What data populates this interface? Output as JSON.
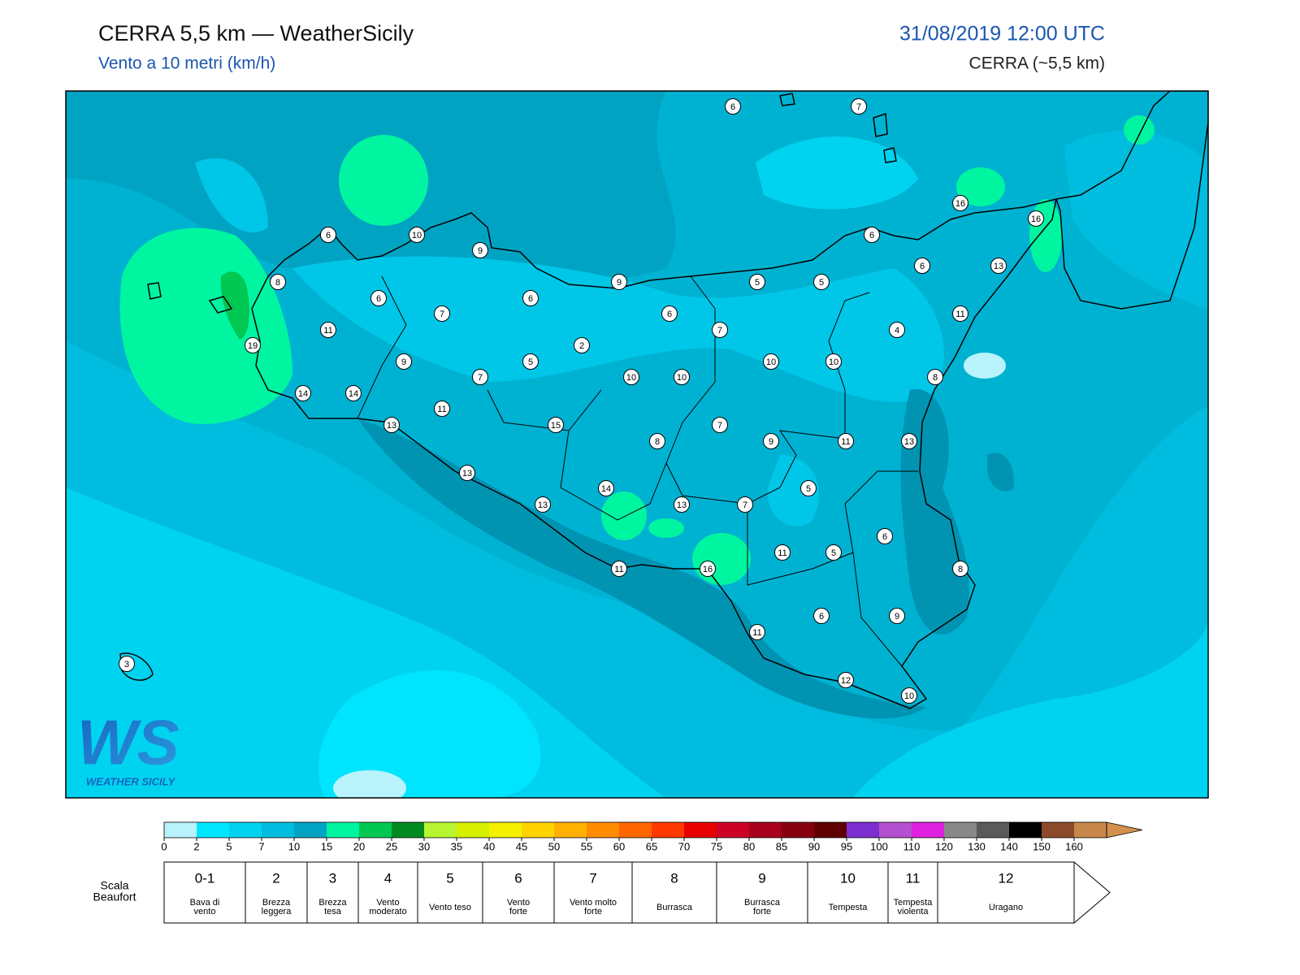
{
  "header": {
    "title": "CERRA 5,5 km — WeatherSicily",
    "subtitle": "Vento a 10 metri (km/h)",
    "datetime": "31/08/2019 12:00 UTC",
    "model": "CERRA (~5,5 km)"
  },
  "stations": [
    6,
    7,
    6,
    10,
    9,
    8,
    9,
    5,
    5,
    6,
    6,
    13,
    16,
    16,
    6,
    7,
    6,
    6,
    7,
    11,
    4,
    11,
    19,
    2,
    5,
    9,
    10,
    10,
    7,
    10,
    10,
    8,
    14,
    14,
    11,
    13,
    15,
    7,
    8,
    9,
    11,
    13,
    13,
    5,
    14,
    13,
    13,
    7,
    6,
    11,
    5,
    11,
    16,
    8,
    6,
    9,
    11,
    12,
    10,
    3
  ],
  "logo": {
    "text": "WS",
    "subtitle": "WEATHER SICILY"
  },
  "colorbar": {
    "levels": [
      0,
      2,
      5,
      7,
      10,
      15,
      20,
      25,
      30,
      35,
      40,
      45,
      50,
      55,
      60,
      65,
      70,
      75,
      80,
      85,
      90,
      95,
      100,
      110,
      120,
      130,
      140,
      150,
      160
    ],
    "colors": [
      "#b9f3fb",
      "#00e5ff",
      "#00d3f0",
      "#00bddf",
      "#00a3c2",
      "#00f5a0",
      "#00c853",
      "#008a20",
      "#b8f531",
      "#d6f000",
      "#f5ef00",
      "#ffd300",
      "#ffb000",
      "#ff8c00",
      "#ff6600",
      "#ff3a00",
      "#e60000",
      "#cc0026",
      "#a8001c",
      "#870010",
      "#5e0000",
      "#7b2fd0",
      "#b44fd0",
      "#e020e0",
      "#888888",
      "#5a5a5a",
      "#000000",
      "#8b4a2b",
      "#c8874a"
    ],
    "extend_color": "#d4914e"
  },
  "beaufort": {
    "title": [
      "Scala",
      "Beaufort"
    ],
    "classes": [
      {
        "force": "0-1",
        "label": [
          "Bava di",
          "vento"
        ]
      },
      {
        "force": 2,
        "label": [
          "Brezza",
          "leggera"
        ]
      },
      {
        "force": 3,
        "label": [
          "Brezza",
          "tesa"
        ]
      },
      {
        "force": 4,
        "label": [
          "Vento",
          "moderato"
        ]
      },
      {
        "force": 5,
        "label": [
          "Vento teso"
        ]
      },
      {
        "force": 6,
        "label": [
          "Vento",
          "forte"
        ]
      },
      {
        "force": 7,
        "label": [
          "Vento molto",
          "forte"
        ]
      },
      {
        "force": 8,
        "label": [
          "Burrasca"
        ]
      },
      {
        "force": 9,
        "label": [
          "Burrasca",
          "forte"
        ]
      },
      {
        "force": 10,
        "label": [
          "Tempesta"
        ]
      },
      {
        "force": 11,
        "label": [
          "Tempesta",
          "violenta"
        ]
      },
      {
        "force": 12,
        "label": [
          "Uragano"
        ]
      }
    ]
  }
}
